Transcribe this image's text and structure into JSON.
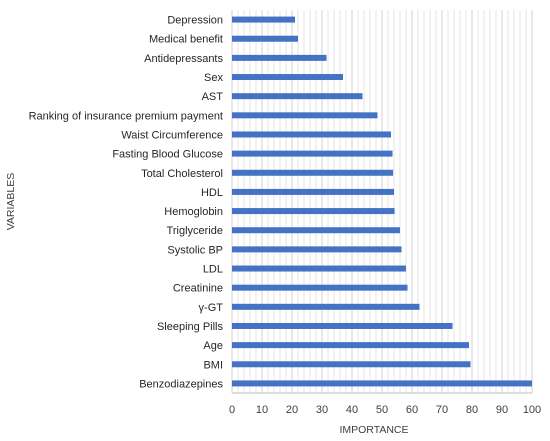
{
  "chart_data": {
    "type": "bar",
    "orientation": "horizontal",
    "xlabel": "IMPORTANCE",
    "ylabel": "VARIABLES",
    "xlim": [
      0,
      100
    ],
    "x_ticks": [
      0,
      10,
      20,
      30,
      40,
      50,
      60,
      70,
      80,
      90,
      100
    ],
    "grid": "vertical, every 2 units",
    "bar_color": "#4472C4",
    "categories": [
      "Depression",
      "Medical benefit",
      "Antidepressants",
      "Sex",
      "AST",
      "Ranking of insurance premium payment",
      "Waist Circumference",
      "Fasting Blood Glucose",
      "Total Cholesterol",
      "HDL",
      "Hemoglobin",
      "Triglyceride",
      "Systolic BP",
      "LDL",
      "Creatinine",
      "γ-GT",
      "Sleeping Pills",
      "Age",
      "BMI",
      "Benzodiazepines"
    ],
    "values": [
      21,
      22,
      31.5,
      37,
      43.5,
      48.5,
      53,
      53.5,
      53.7,
      54,
      54.2,
      56,
      56.5,
      58,
      58.5,
      62.5,
      73.5,
      79,
      79.5,
      100
    ]
  }
}
